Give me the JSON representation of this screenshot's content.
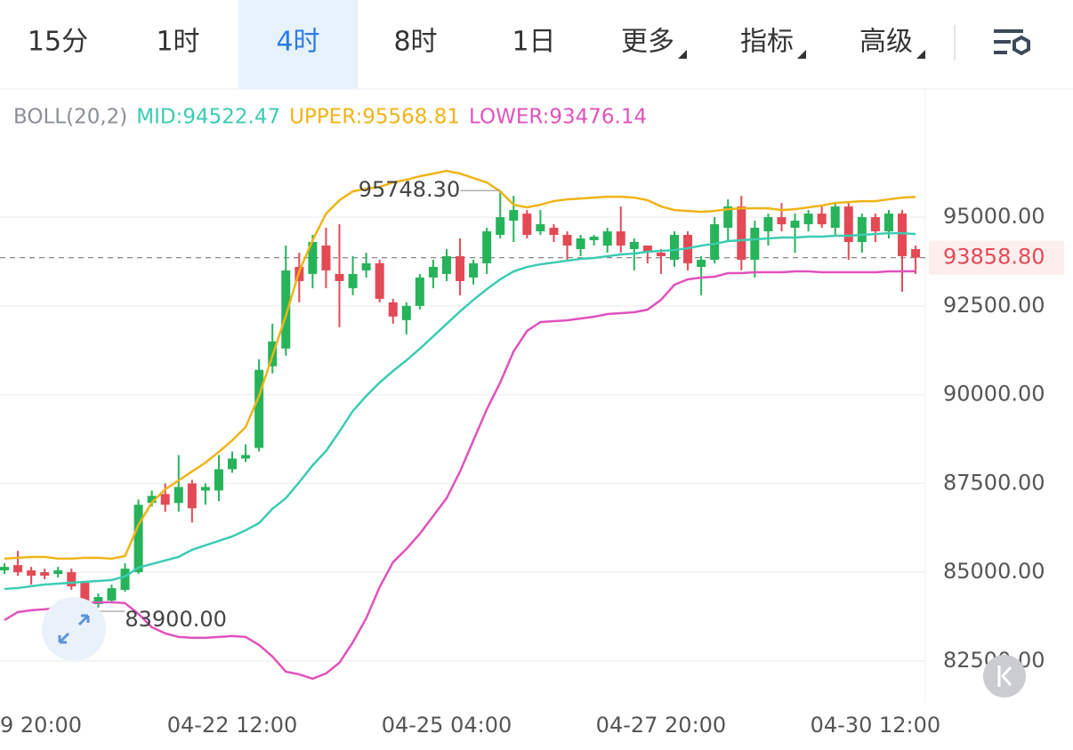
{
  "tabs": [
    "15分",
    "1时",
    "4时",
    "8时",
    "1日",
    "更多",
    "指标",
    "高级"
  ],
  "selected_tab": 2,
  "chart_data": {
    "type": "candlestick",
    "legend_title": "BOLL(20,2)",
    "categories": [
      null,
      "9 20:00",
      null,
      null,
      null,
      null,
      null,
      null,
      null,
      null,
      null,
      null,
      null,
      null,
      null,
      null,
      null,
      "04-22 12:00",
      null,
      null,
      null,
      null,
      null,
      null,
      null,
      null,
      null,
      null,
      null,
      null,
      null,
      null,
      null,
      "04-25 04:00",
      null,
      null,
      null,
      null,
      null,
      null,
      null,
      null,
      null,
      null,
      null,
      null,
      null,
      null,
      null,
      "04-27 20:00",
      null,
      null,
      null,
      null,
      null,
      null,
      null,
      null,
      null,
      null,
      null,
      null,
      null,
      null,
      null,
      "04-30 12:00",
      null,
      null,
      null
    ],
    "open": [
      85050,
      85200,
      85050,
      85000,
      84950,
      85000,
      84700,
      84100,
      84200,
      84500,
      85000,
      86950,
      87200,
      86950,
      87500,
      87300,
      87300,
      87900,
      88200,
      88500,
      90800,
      91300,
      93600,
      93400,
      94200,
      93400,
      93000,
      93500,
      93700,
      92600,
      92100,
      92500,
      93300,
      93400,
      93900,
      93300,
      93700,
      94500,
      94900,
      95100,
      94600,
      94700,
      94500,
      94100,
      94350,
      94200,
      94600,
      94100,
      94200,
      94000,
      93800,
      94500,
      93600,
      93800,
      94700,
      95300,
      93800,
      94600,
      95000,
      94700,
      94800,
      95100,
      94700,
      95300,
      94300,
      95000,
      94600,
      95100,
      94100
    ],
    "high": [
      85250,
      85600,
      85150,
      85100,
      85150,
      85100,
      84750,
      84400,
      84650,
      85250,
      87050,
      87300,
      87500,
      88300,
      87600,
      87500,
      88300,
      88400,
      88600,
      91000,
      92000,
      94200,
      94000,
      94500,
      94700,
      94800,
      93900,
      94000,
      93800,
      92700,
      92600,
      93400,
      93800,
      94100,
      94400,
      93800,
      94700,
      95748.3,
      95600,
      95200,
      95200,
      94800,
      94600,
      94500,
      94500,
      94700,
      95300,
      94400,
      94200,
      94100,
      94600,
      94600,
      93900,
      95000,
      95500,
      95600,
      94900,
      95100,
      95400,
      95100,
      95200,
      95300,
      95400,
      95400,
      95100,
      95100,
      95200,
      95200,
      94200
    ],
    "low": [
      84950,
      84900,
      84650,
      84800,
      84850,
      84500,
      83900,
      84000,
      84150,
      84450,
      84950,
      86850,
      86700,
      86700,
      86400,
      86900,
      87000,
      87800,
      88100,
      88400,
      90600,
      91100,
      92600,
      93000,
      93000,
      91900,
      92800,
      93300,
      92600,
      92000,
      91700,
      92400,
      93000,
      93200,
      92800,
      93100,
      93400,
      94400,
      94300,
      94400,
      94500,
      94300,
      93800,
      93900,
      94200,
      94000,
      94000,
      93500,
      93700,
      93400,
      93600,
      93500,
      92800,
      93700,
      94300,
      93500,
      93300,
      94200,
      94600,
      94000,
      94600,
      94700,
      94500,
      93800,
      94000,
      94300,
      94400,
      92900,
      93400
    ],
    "close": [
      85150,
      85000,
      84900,
      84900,
      85050,
      84600,
      83950,
      84300,
      84550,
      85100,
      86900,
      87150,
      86900,
      87400,
      86800,
      87400,
      87900,
      88200,
      88300,
      90700,
      91500,
      93500,
      93200,
      94300,
      93500,
      93200,
      93400,
      93700,
      92700,
      92200,
      92500,
      93300,
      93600,
      93900,
      93200,
      93700,
      94600,
      95000,
      95200,
      94500,
      94800,
      94500,
      94200,
      94400,
      94450,
      94600,
      94200,
      94300,
      94000,
      93900,
      94500,
      93700,
      93800,
      94800,
      95300,
      93800,
      94700,
      95000,
      94800,
      94900,
      95100,
      94800,
      95300,
      94300,
      95000,
      94600,
      95100,
      93900,
      93858.8
    ],
    "up_color": "#26b35a",
    "down_color": "#e34a55",
    "bands": [
      {
        "label": "MID:94522.47",
        "color": "#3ccbb4",
        "values": [
          84529,
          84554,
          84604,
          84654,
          84679,
          84704,
          84729,
          84754,
          84779,
          84879,
          85130,
          85230,
          85330,
          85431,
          85631,
          85757,
          85882,
          86007,
          86182,
          86383,
          86784,
          87084,
          87535,
          88011,
          88412,
          88963,
          89539,
          89965,
          90341,
          90666,
          90967,
          91293,
          91643,
          91994,
          92345,
          92670,
          92971,
          93247,
          93472,
          93597,
          93672,
          93722,
          93772,
          93823,
          93848,
          93898,
          93948,
          93973,
          94023,
          94048,
          94073,
          94123,
          94198,
          94248,
          94324,
          94349,
          94374,
          94399,
          94424,
          94424,
          94449,
          94449,
          94474,
          94474,
          94499,
          94524,
          94549,
          94549,
          94522.47
        ]
      },
      {
        "label": "UPPER:95568.81",
        "color": "#efb416",
        "values": [
          85381,
          85406,
          85431,
          85431,
          85381,
          85381,
          85406,
          85406,
          85381,
          85456,
          86333,
          86959,
          87335,
          87585,
          87836,
          88086,
          88387,
          88713,
          89088,
          89965,
          91092,
          92219,
          93472,
          94349,
          95100,
          95476,
          95726,
          95802,
          95852,
          95977,
          96052,
          96152,
          96227,
          96303,
          96227,
          96102,
          95977,
          95726,
          95351,
          95276,
          95351,
          95451,
          95501,
          95526,
          95551,
          95576,
          95576,
          95551,
          95476,
          95301,
          95200,
          95175,
          95150,
          95175,
          95225,
          95250,
          95250,
          95250,
          95200,
          95225,
          95276,
          95326,
          95401,
          95426,
          95451,
          95451,
          95501,
          95551,
          95568.81
        ]
      },
      {
        "label": "LOWER:93476.14",
        "color": "#e052bd",
        "values": [
          83652,
          83877,
          83928,
          83953,
          84003,
          84078,
          84128,
          84153,
          84153,
          84128,
          83827,
          83451,
          83276,
          83176,
          83151,
          83151,
          83176,
          83201,
          83176,
          82950,
          82625,
          82199,
          82124,
          81999,
          82149,
          82450,
          83026,
          83702,
          84579,
          85281,
          85656,
          86082,
          86583,
          87084,
          87836,
          88713,
          89589,
          90341,
          91218,
          91794,
          92045,
          92069,
          92094,
          92144,
          92194,
          92270,
          92295,
          92320,
          92395,
          92670,
          93096,
          93247,
          93297,
          93322,
          93422,
          93422,
          93447,
          93447,
          93447,
          93472,
          93472,
          93447,
          93447,
          93447,
          93447,
          93447,
          93472,
          93472,
          93476.14
        ]
      }
    ],
    "max_marker": {
      "value": 95748.3,
      "label": "95748.30",
      "index": 37
    },
    "min_marker": {
      "value": 83900,
      "label": "83900.00",
      "index": 6
    },
    "last_price": {
      "value": 93858.8,
      "label": "93858.80"
    },
    "ylim": [
      81320,
      98610
    ],
    "yticks": [
      {
        "value": 82500,
        "label": "82500.00"
      },
      {
        "value": 85000,
        "label": "85000.00"
      },
      {
        "value": 87500,
        "label": "87500.00"
      },
      {
        "value": 90000,
        "label": "90000.00"
      },
      {
        "value": 92500,
        "label": "92500.00"
      },
      {
        "value": 95000,
        "label": "95000.00"
      }
    ],
    "grid": true
  }
}
